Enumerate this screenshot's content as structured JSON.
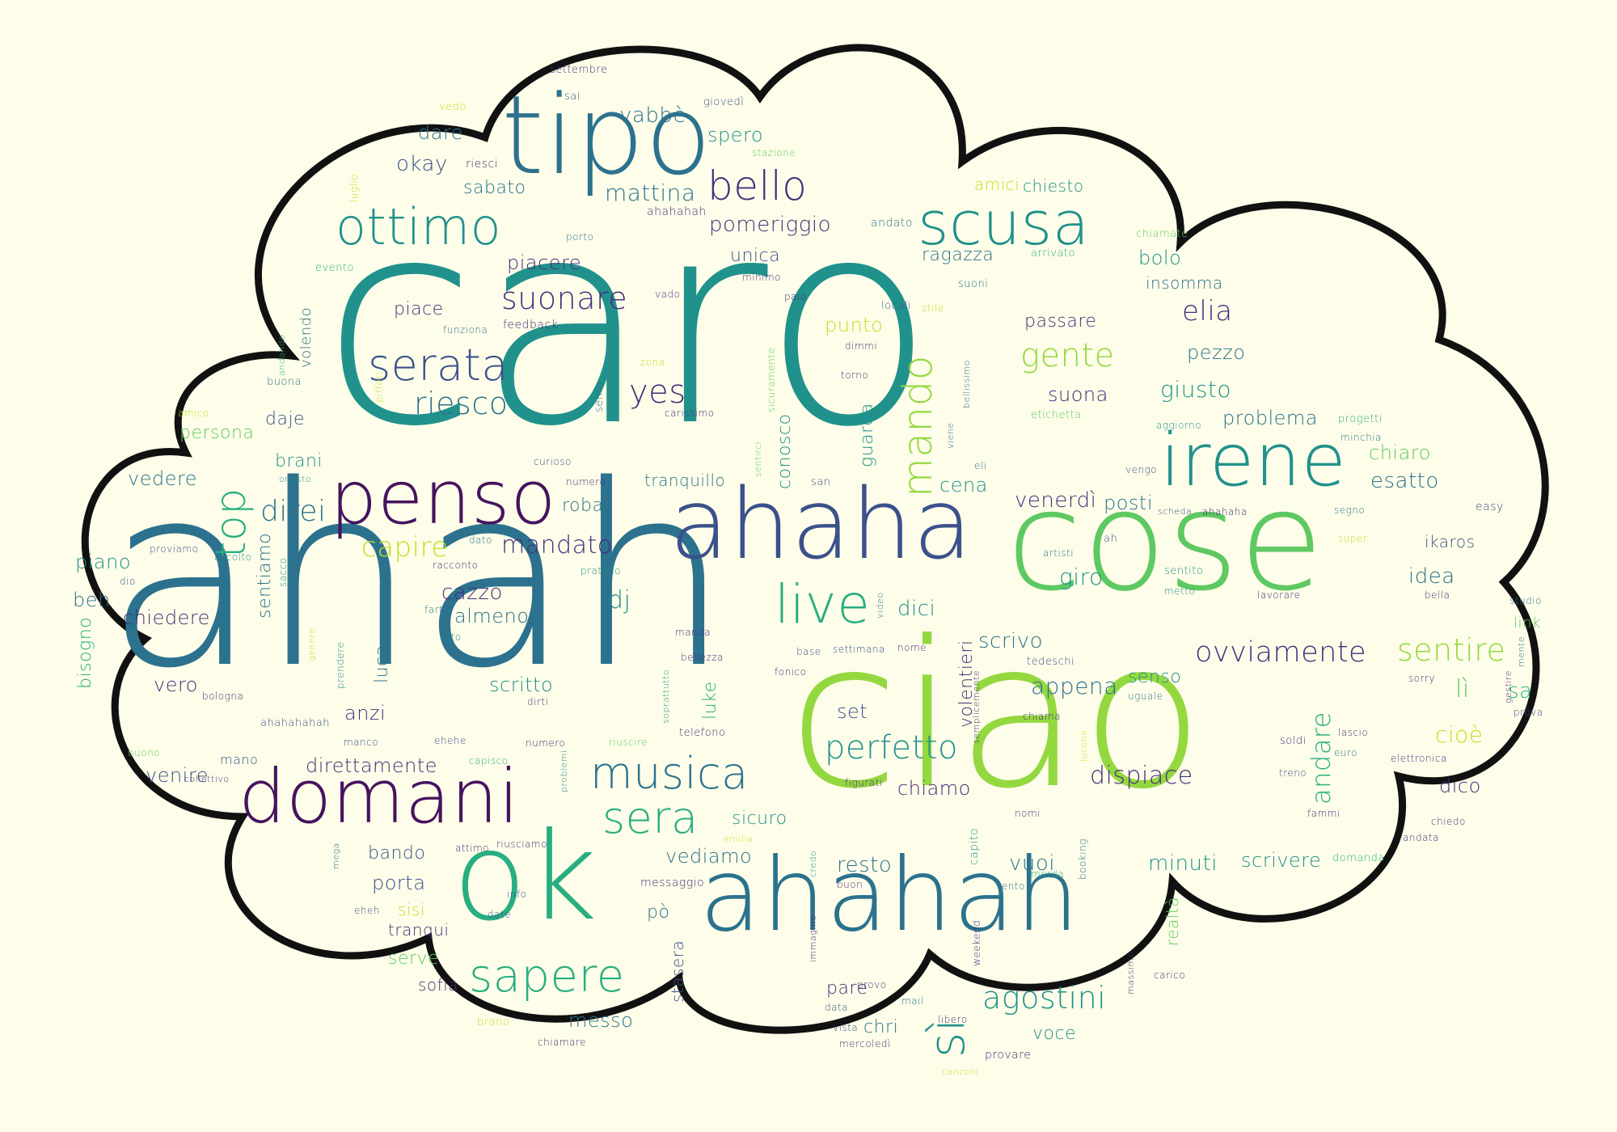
{
  "cloud": {
    "fill": "#fdfde9",
    "outline": "#111111",
    "background": "#fdfde9"
  },
  "palette": {
    "dark_purple": "#46135f",
    "purple": "#472d7b",
    "indigo": "#3b518b",
    "blue": "#2c728e",
    "teal": "#21918c",
    "sea_green": "#28ae80",
    "green": "#5ec962",
    "light_green": "#94d840",
    "yellow_green": "#c2df23",
    "yellow": "#fde725"
  },
  "words": [
    {
      "text": "caro",
      "color": "teal"
    },
    {
      "text": "ahah",
      "color": "blue"
    },
    {
      "text": "ciao",
      "color": "light_green"
    },
    {
      "text": "cose",
      "color": "green"
    },
    {
      "text": "tipo",
      "color": "blue"
    },
    {
      "text": "ahaha",
      "color": "indigo"
    },
    {
      "text": "ahahah",
      "color": "blue"
    },
    {
      "text": "ok",
      "color": "sea_green"
    },
    {
      "text": "penso",
      "color": "dark_purple"
    },
    {
      "text": "domani",
      "color": "dark_purple"
    },
    {
      "text": "irene",
      "color": "teal"
    },
    {
      "text": "scusa",
      "color": "teal"
    },
    {
      "text": "ottimo",
      "color": "teal"
    },
    {
      "text": "musica",
      "color": "blue"
    },
    {
      "text": "sapere",
      "color": "sea_green"
    },
    {
      "text": "serata",
      "color": "indigo"
    },
    {
      "text": "live",
      "color": "sea_green"
    },
    {
      "text": "bello",
      "color": "purple"
    },
    {
      "text": "mando",
      "color": "light_green"
    },
    {
      "text": "top",
      "color": "sea_green"
    },
    {
      "text": "sera",
      "color": "sea_green"
    },
    {
      "text": "suonare",
      "color": "purple"
    },
    {
      "text": "perfetto",
      "color": "teal"
    },
    {
      "text": "agostini",
      "color": "teal"
    },
    {
      "text": "ovviamente",
      "color": "purple"
    },
    {
      "text": "sentire",
      "color": "light_green"
    },
    {
      "text": "riesco",
      "color": "blue"
    },
    {
      "text": "gente",
      "color": "light_green"
    },
    {
      "text": "yes",
      "color": "purple"
    },
    {
      "text": "sì",
      "color": "teal"
    },
    {
      "text": "direi",
      "color": "blue"
    },
    {
      "text": "capire",
      "color": "yellow_green"
    },
    {
      "text": "mandato",
      "color": "purple"
    },
    {
      "text": "elia",
      "color": "purple"
    },
    {
      "text": "andare",
      "color": "sea_green"
    },
    {
      "text": "dispiace",
      "color": "purple"
    },
    {
      "text": "mattina",
      "color": "blue"
    },
    {
      "text": "pomeriggio",
      "color": "purple"
    },
    {
      "text": "vabbè",
      "color": "blue"
    },
    {
      "text": "spero",
      "color": "teal"
    },
    {
      "text": "dare",
      "color": "blue"
    },
    {
      "text": "okay",
      "color": "indigo"
    },
    {
      "text": "sabato",
      "color": "blue"
    },
    {
      "text": "amici",
      "color": "yellow_green"
    },
    {
      "text": "chiesto",
      "color": "teal"
    },
    {
      "text": "piacere",
      "color": "purple"
    },
    {
      "text": "unica",
      "color": "indigo"
    },
    {
      "text": "ragazza",
      "color": "blue"
    },
    {
      "text": "bolo",
      "color": "teal"
    },
    {
      "text": "insomma",
      "color": "blue"
    },
    {
      "text": "piace",
      "color": "purple"
    },
    {
      "text": "punto",
      "color": "yellow_green"
    },
    {
      "text": "passare",
      "color": "purple"
    },
    {
      "text": "pezzo",
      "color": "blue"
    },
    {
      "text": "giusto",
      "color": "teal"
    },
    {
      "text": "suona",
      "color": "purple"
    },
    {
      "text": "problema",
      "color": "blue"
    },
    {
      "text": "chiaro",
      "color": "green"
    },
    {
      "text": "esatto",
      "color": "blue"
    },
    {
      "text": "venerdì",
      "color": "purple"
    },
    {
      "text": "posti",
      "color": "blue"
    },
    {
      "text": "cena",
      "color": "teal"
    },
    {
      "text": "conosco",
      "color": "teal"
    },
    {
      "text": "guarda",
      "color": "teal"
    },
    {
      "text": "daje",
      "color": "indigo"
    },
    {
      "text": "persona",
      "color": "green"
    },
    {
      "text": "brani",
      "color": "teal"
    },
    {
      "text": "vedere",
      "color": "blue"
    },
    {
      "text": "piano",
      "color": "teal"
    },
    {
      "text": "beh",
      "color": "blue"
    },
    {
      "text": "chiedere",
      "color": "purple"
    },
    {
      "text": "sentiamo",
      "color": "blue"
    },
    {
      "text": "roba",
      "color": "blue"
    },
    {
      "text": "tranquillo",
      "color": "blue"
    },
    {
      "text": "cazzo",
      "color": "purple"
    },
    {
      "text": "almeno",
      "color": "blue"
    },
    {
      "text": "dj",
      "color": "teal"
    },
    {
      "text": "dici",
      "color": "teal"
    },
    {
      "text": "scrivo",
      "color": "blue"
    },
    {
      "text": "giro",
      "color": "teal"
    },
    {
      "text": "idea",
      "color": "blue"
    },
    {
      "text": "ikaros",
      "color": "indigo"
    },
    {
      "text": "link",
      "color": "green"
    },
    {
      "text": "sa",
      "color": "sea_green"
    },
    {
      "text": "lì",
      "color": "green"
    },
    {
      "text": "cioè",
      "color": "yellow_green"
    },
    {
      "text": "dico",
      "color": "purple"
    },
    {
      "text": "senso",
      "color": "teal"
    },
    {
      "text": "appena",
      "color": "blue"
    },
    {
      "text": "volentieri",
      "color": "purple"
    },
    {
      "text": "set",
      "color": "indigo"
    },
    {
      "text": "chiamo",
      "color": "purple"
    },
    {
      "text": "vero",
      "color": "purple"
    },
    {
      "text": "anzi",
      "color": "purple"
    },
    {
      "text": "scritto",
      "color": "teal"
    },
    {
      "text": "luca",
      "color": "blue"
    },
    {
      "text": "luke",
      "color": "sea_green"
    },
    {
      "text": "venire",
      "color": "indigo"
    },
    {
      "text": "direttamente",
      "color": "purple"
    },
    {
      "text": "sicuro",
      "color": "teal"
    },
    {
      "text": "vediamo",
      "color": "blue"
    },
    {
      "text": "resto",
      "color": "blue"
    },
    {
      "text": "vuoi",
      "color": "blue"
    },
    {
      "text": "minuti",
      "color": "teal"
    },
    {
      "text": "scrivere",
      "color": "teal"
    },
    {
      "text": "bando",
      "color": "indigo"
    },
    {
      "text": "porta",
      "color": "indigo"
    },
    {
      "text": "sisi",
      "color": "yellow_green"
    },
    {
      "text": "tranqui",
      "color": "purple"
    },
    {
      "text": "serve",
      "color": "green"
    },
    {
      "text": "sofia",
      "color": "purple"
    },
    {
      "text": "messo",
      "color": "blue"
    },
    {
      "text": "pò",
      "color": "blue"
    },
    {
      "text": "chri",
      "color": "blue"
    },
    {
      "text": "voce",
      "color": "teal"
    },
    {
      "text": "pare",
      "color": "purple"
    },
    {
      "text": "stasera",
      "color": "indigo"
    },
    {
      "text": "realtà",
      "color": "green"
    },
    {
      "text": "settembre",
      "color": "purple"
    },
    {
      "text": "sai",
      "color": "indigo"
    },
    {
      "text": "vedo",
      "color": "yellow_green"
    },
    {
      "text": "giovedì",
      "color": "indigo"
    },
    {
      "text": "stazione",
      "color": "green"
    },
    {
      "text": "riesci",
      "color": "purple"
    },
    {
      "text": "luglio",
      "color": "yellow_green"
    },
    {
      "text": "porto",
      "color": "blue"
    },
    {
      "text": "ahahahah",
      "color": "purple"
    },
    {
      "text": "andato",
      "color": "blue"
    },
    {
      "text": "arrivato",
      "color": "sea_green"
    },
    {
      "text": "chiamate",
      "color": "green"
    },
    {
      "text": "evento",
      "color": "sea_green"
    },
    {
      "text": "minimo",
      "color": "purple"
    },
    {
      "text": "paio",
      "color": "purple"
    },
    {
      "text": "suoni",
      "color": "blue"
    },
    {
      "text": "vado",
      "color": "purple"
    },
    {
      "text": "locali",
      "color": "indigo"
    },
    {
      "text": "stile",
      "color": "yellow_green"
    },
    {
      "text": "volendo",
      "color": "blue"
    },
    {
      "text": "funziona",
      "color": "blue"
    },
    {
      "text": "feedback",
      "color": "purple"
    },
    {
      "text": "dimmi",
      "color": "purple"
    },
    {
      "text": "andando",
      "color": "sea_green"
    },
    {
      "text": "zona",
      "color": "yellow_green"
    },
    {
      "text": "buona",
      "color": "blue"
    },
    {
      "text": "pifferi",
      "color": "yellow_green"
    },
    {
      "text": "sento",
      "color": "blue"
    },
    {
      "text": "sicuramente",
      "color": "green"
    },
    {
      "text": "torno",
      "color": "purple"
    },
    {
      "text": "bellissimo",
      "color": "blue"
    },
    {
      "text": "etichetta",
      "color": "green"
    },
    {
      "text": "aggiorno",
      "color": "teal"
    },
    {
      "text": "progetti",
      "color": "sea_green"
    },
    {
      "text": "amico",
      "color": "yellow_green"
    },
    {
      "text": "carissimo",
      "color": "purple"
    },
    {
      "text": "minchia",
      "color": "blue"
    },
    {
      "text": "curioso",
      "color": "indigo"
    },
    {
      "text": "sentirci",
      "color": "green"
    },
    {
      "text": "viene",
      "color": "blue"
    },
    {
      "text": "eli",
      "color": "blue"
    },
    {
      "text": "vengo",
      "color": "indigo"
    },
    {
      "text": "onesto",
      "color": "teal"
    },
    {
      "text": "numero",
      "color": "purple"
    },
    {
      "text": "san",
      "color": "indigo"
    },
    {
      "text": "scheda",
      "color": "indigo"
    },
    {
      "text": "ahahaha",
      "color": "purple"
    },
    {
      "text": "segno",
      "color": "blue"
    },
    {
      "text": "easy",
      "color": "indigo"
    },
    {
      "text": "proviamo",
      "color": "indigo"
    },
    {
      "text": "dato",
      "color": "blue"
    },
    {
      "text": "artisti",
      "color": "blue"
    },
    {
      "text": "ah",
      "color": "indigo"
    },
    {
      "text": "super",
      "color": "yellow_green"
    },
    {
      "text": "ascolto",
      "color": "teal"
    },
    {
      "text": "racconto",
      "color": "purple"
    },
    {
      "text": "sentito",
      "color": "teal"
    },
    {
      "text": "dio",
      "color": "indigo"
    },
    {
      "text": "sacco",
      "color": "teal"
    },
    {
      "text": "pratello",
      "color": "teal"
    },
    {
      "text": "video",
      "color": "blue"
    },
    {
      "text": "metto",
      "color": "teal"
    },
    {
      "text": "lavorare",
      "color": "purple"
    },
    {
      "text": "bella",
      "color": "purple"
    },
    {
      "text": "studio",
      "color": "blue"
    },
    {
      "text": "farti",
      "color": "blue"
    },
    {
      "text": "foto",
      "color": "teal"
    },
    {
      "text": "bisogno",
      "color": "sea_green"
    },
    {
      "text": "genere",
      "color": "yellow_green"
    },
    {
      "text": "manda",
      "color": "purple"
    },
    {
      "text": "base",
      "color": "indigo"
    },
    {
      "text": "settimana",
      "color": "indigo"
    },
    {
      "text": "nome",
      "color": "purple"
    },
    {
      "text": "tedeschi",
      "color": "indigo"
    },
    {
      "text": "bellezza",
      "color": "purple"
    },
    {
      "text": "fonico",
      "color": "purple"
    },
    {
      "text": "prendere",
      "color": "teal"
    },
    {
      "text": "mente",
      "color": "blue"
    },
    {
      "text": "bologna",
      "color": "purple"
    },
    {
      "text": "soprattutto",
      "color": "teal"
    },
    {
      "text": "dirti",
      "color": "purple"
    },
    {
      "text": "semplicemente",
      "color": "purple"
    },
    {
      "text": "sorry",
      "color": "purple"
    },
    {
      "text": "gestire",
      "color": "purple"
    },
    {
      "text": "prova",
      "color": "indigo"
    },
    {
      "text": "chiama",
      "color": "purple"
    },
    {
      "text": "uguale",
      "color": "blue"
    },
    {
      "text": "ahahahahah",
      "color": "indigo"
    },
    {
      "text": "manco",
      "color": "indigo"
    },
    {
      "text": "ehehe",
      "color": "indigo"
    },
    {
      "text": "numero",
      "color": "purple"
    },
    {
      "text": "riuscire",
      "color": "green"
    },
    {
      "text": "telefono",
      "color": "purple"
    },
    {
      "text": "lucone",
      "color": "yellow_green"
    },
    {
      "text": "soldi",
      "color": "purple"
    },
    {
      "text": "lascio",
      "color": "purple"
    },
    {
      "text": "buono",
      "color": "green"
    },
    {
      "text": "mano",
      "color": "indigo"
    },
    {
      "text": "capisco",
      "color": "sea_green"
    },
    {
      "text": "problemi",
      "color": "teal"
    },
    {
      "text": "figurati",
      "color": "purple"
    },
    {
      "text": "euro",
      "color": "blue"
    },
    {
      "text": "treno",
      "color": "indigo"
    },
    {
      "text": "elettronica",
      "color": "purple"
    },
    {
      "text": "collettivo",
      "color": "purple"
    },
    {
      "text": "capito",
      "color": "teal"
    },
    {
      "text": "nomi",
      "color": "purple"
    },
    {
      "text": "chiedo",
      "color": "purple"
    },
    {
      "text": "fammi",
      "color": "purple"
    },
    {
      "text": "attimo",
      "color": "purple"
    },
    {
      "text": "riusciamo",
      "color": "purple"
    },
    {
      "text": "messaggio",
      "color": "purple"
    },
    {
      "text": "credo",
      "color": "teal"
    },
    {
      "text": "emilia",
      "color": "yellow_green"
    },
    {
      "text": "merda",
      "color": "sea_green"
    },
    {
      "text": "booking",
      "color": "blue"
    },
    {
      "text": "domanda",
      "color": "sea_green"
    },
    {
      "text": "andata",
      "color": "purple"
    },
    {
      "text": "mega",
      "color": "blue"
    },
    {
      "text": "buon",
      "color": "purple"
    },
    {
      "text": "lento",
      "color": "blue"
    },
    {
      "text": "info",
      "color": "indigo"
    },
    {
      "text": "eheh",
      "color": "indigo"
    },
    {
      "text": "date",
      "color": "indigo"
    },
    {
      "text": "immagino",
      "color": "purple"
    },
    {
      "text": "weekend",
      "color": "purple"
    },
    {
      "text": "massimo",
      "color": "purple"
    },
    {
      "text": "carico",
      "color": "purple"
    },
    {
      "text": "provo",
      "color": "purple"
    },
    {
      "text": "mail",
      "color": "blue"
    },
    {
      "text": "data",
      "color": "indigo"
    },
    {
      "text": "libero",
      "color": "purple"
    },
    {
      "text": "vista",
      "color": "indigo"
    },
    {
      "text": "mercoledì",
      "color": "purple"
    },
    {
      "text": "provare",
      "color": "purple"
    },
    {
      "text": "canzoni",
      "color": "yellow_green"
    },
    {
      "text": "brano",
      "color": "yellow_green"
    },
    {
      "text": "chiamare",
      "color": "purple"
    }
  ]
}
